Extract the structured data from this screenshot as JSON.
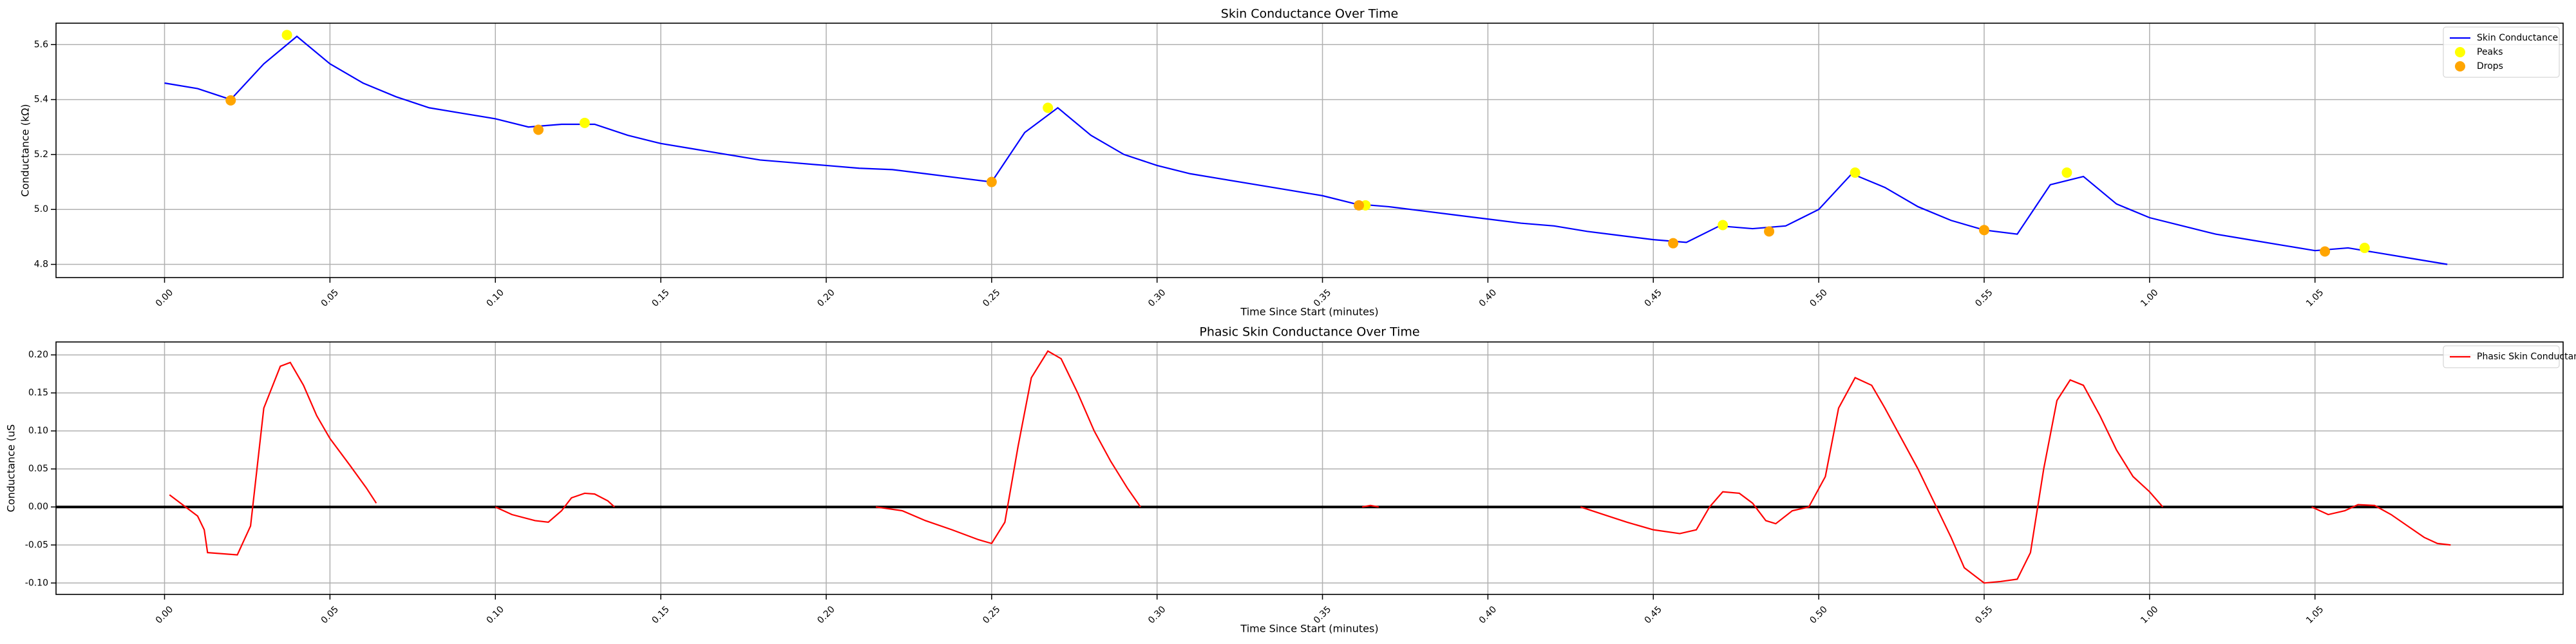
{
  "chart_data": [
    {
      "type": "line",
      "title": "Skin Conductance Over Time",
      "xlabel": "Time Since Start (minutes)",
      "ylabel": "Conductance (kΩ)",
      "xlim": [
        -3.28,
        72.5
      ],
      "ylim": [
        4.752,
        5.678
      ],
      "grid": true,
      "legend": "upper right",
      "xticks": [
        {
          "value": 0,
          "label": "0.00"
        },
        {
          "value": 5,
          "label": "0.05"
        },
        {
          "value": 10,
          "label": "0.10"
        },
        {
          "value": 15,
          "label": "0.15"
        },
        {
          "value": 20,
          "label": "0.20"
        },
        {
          "value": 25,
          "label": "0.25"
        },
        {
          "value": 30,
          "label": "0.30"
        },
        {
          "value": 35,
          "label": "0.35"
        },
        {
          "value": 40,
          "label": "0.40"
        },
        {
          "value": 45,
          "label": "0.45"
        },
        {
          "value": 50,
          "label": "0.50"
        },
        {
          "value": 55,
          "label": "0.55"
        },
        {
          "value": 60,
          "label": "1.00"
        },
        {
          "value": 65,
          "label": "1.05"
        }
      ],
      "yticks": [
        4.8,
        {
          "value": 5,
          "label": "5.0"
        },
        5.2,
        5.4,
        5.6
      ],
      "series": [
        {
          "name": "Skin Conductance",
          "color": "blue",
          "type": "line",
          "x": [
            0,
            1,
            2,
            3,
            4,
            5,
            6,
            7,
            8,
            9,
            10,
            11,
            12,
            13,
            14,
            15,
            16,
            17,
            18,
            19,
            20,
            21,
            22,
            23,
            24,
            25,
            26,
            27,
            28,
            29,
            30,
            31,
            32,
            33,
            34,
            35,
            36,
            37,
            38,
            39,
            40,
            41,
            42,
            43,
            44,
            45,
            46,
            47,
            48,
            49,
            50,
            51,
            52,
            53,
            54,
            55,
            56,
            57,
            58,
            59,
            60,
            61,
            62,
            63,
            64,
            65,
            66,
            67,
            68,
            69
          ],
          "values": [
            5.46,
            5.44,
            5.4,
            5.53,
            5.63,
            5.53,
            5.46,
            5.41,
            5.37,
            5.35,
            5.33,
            5.3,
            5.31,
            5.31,
            5.27,
            5.24,
            5.22,
            5.2,
            5.18,
            5.17,
            5.16,
            5.15,
            5.145,
            5.13,
            5.115,
            5.1,
            5.28,
            5.37,
            5.27,
            5.2,
            5.16,
            5.13,
            5.11,
            5.09,
            5.07,
            5.05,
            5.02,
            5.01,
            4.995,
            4.98,
            4.965,
            4.95,
            4.94,
            4.92,
            4.905,
            4.89,
            4.88,
            4.94,
            4.93,
            4.94,
            5.0,
            5.13,
            5.08,
            5.01,
            4.96,
            4.925,
            4.91,
            5.09,
            5.12,
            5.02,
            4.97,
            4.94,
            4.91,
            4.89,
            4.87,
            4.85,
            4.86,
            4.84,
            4.82,
            4.8
          ]
        },
        {
          "name": "Peaks",
          "color": "yellow",
          "type": "scatter",
          "x": [
            3.7,
            12.7,
            26.7,
            36.3,
            47.1,
            51.1,
            57.5,
            66.5
          ],
          "values": [
            5.635,
            5.315,
            5.37,
            5.015,
            4.943,
            5.134,
            5.134,
            4.86
          ]
        },
        {
          "name": "Drops",
          "color": "orange",
          "type": "scatter",
          "x": [
            2.0,
            11.3,
            25.0,
            36.1,
            45.6,
            48.5,
            55.0,
            65.3
          ],
          "values": [
            5.397,
            5.29,
            5.1,
            5.015,
            4.877,
            4.92,
            4.925,
            4.847
          ]
        }
      ]
    },
    {
      "type": "line",
      "title": "Phasic Skin Conductance Over Time",
      "xlabel": "Time Since Start (minutes)",
      "ylabel": "Conductance (uS",
      "xlim": [
        -3.28,
        72.5
      ],
      "ylim": [
        -0.115,
        0.217
      ],
      "grid": true,
      "legend": "upper right",
      "reference_line": {
        "value": 0,
        "color": "black"
      },
      "xticks": [
        {
          "value": 0,
          "label": "0.00"
        },
        {
          "value": 5,
          "label": "0.05"
        },
        {
          "value": 10,
          "label": "0.10"
        },
        {
          "value": 15,
          "label": "0.15"
        },
        {
          "value": 20,
          "label": "0.20"
        },
        {
          "value": 25,
          "label": "0.25"
        },
        {
          "value": 30,
          "label": "0.30"
        },
        {
          "value": 35,
          "label": "0.35"
        },
        {
          "value": 40,
          "label": "0.40"
        },
        {
          "value": 45,
          "label": "0.45"
        },
        {
          "value": 50,
          "label": "0.50"
        },
        {
          "value": 55,
          "label": "0.55"
        },
        {
          "value": 60,
          "label": "1.00"
        },
        {
          "value": 65,
          "label": "1.05"
        }
      ],
      "yticks": [
        {
          "value": -0.1,
          "label": "-0.10"
        },
        -0.05,
        {
          "value": 0,
          "label": "0.00"
        },
        0.05,
        {
          "value": 0.1,
          "label": "0.10"
        },
        0.15,
        {
          "value": 0.2,
          "label": "0.20"
        }
      ],
      "series": [
        {
          "name": "Phasic Skin Conductance",
          "color": "red",
          "type": "line",
          "x": [
            0.15,
            1.0,
            1.2,
            1.3,
            2.2,
            2.6,
            3.0,
            3.5,
            3.8,
            4.2,
            4.6,
            5.0,
            5.6,
            6.1,
            6.4,
            8,
            10.0,
            10.5,
            11.2,
            11.6,
            12.0,
            12.3,
            12.7,
            13.0,
            13.4,
            13.6,
            17,
            21.5,
            22.3,
            23.0,
            23.8,
            24.6,
            25.0,
            25.4,
            25.8,
            26.2,
            26.7,
            27.1,
            27.6,
            28.1,
            28.6,
            29.1,
            29.5,
            33,
            36.2,
            36.45,
            36.7,
            40,
            42.8,
            43.5,
            44.2,
            45.0,
            45.8,
            46.3,
            46.7,
            47.1,
            47.6,
            48.0,
            48.4,
            48.7,
            49.2,
            49.7,
            50.2,
            50.6,
            51.1,
            51.6,
            52.0,
            52.5,
            53.0,
            53.5,
            54.0,
            54.4,
            55.0,
            55.5,
            56.0,
            56.4,
            56.8,
            57.2,
            57.6,
            58.0,
            58.5,
            59.0,
            59.5,
            60.0,
            60.4,
            63,
            64.9,
            65.4,
            65.9,
            66.3,
            66.8,
            67.3,
            67.8,
            68.3,
            68.7,
            69.1
          ],
          "values": [
            0.016,
            -0.012,
            -0.03,
            -0.06,
            -0.063,
            -0.025,
            0.13,
            0.185,
            0.19,
            0.16,
            0.12,
            0.09,
            0.055,
            0.025,
            0.005,
            null,
            0.0,
            -0.01,
            -0.018,
            -0.02,
            -0.005,
            0.012,
            0.018,
            0.017,
            0.008,
            0.0,
            null,
            0.0,
            -0.005,
            -0.018,
            -0.03,
            -0.043,
            -0.048,
            -0.02,
            0.08,
            0.17,
            0.205,
            0.195,
            0.15,
            0.1,
            0.06,
            0.025,
            0.0,
            null,
            0.0,
            0.002,
            0.0,
            null,
            0.0,
            -0.01,
            -0.02,
            -0.03,
            -0.035,
            -0.03,
            0.0,
            0.02,
            0.018,
            0.005,
            -0.018,
            -0.022,
            -0.005,
            0.0,
            0.04,
            0.13,
            0.17,
            0.16,
            0.13,
            0.09,
            0.05,
            0.005,
            -0.04,
            -0.08,
            -0.1,
            -0.098,
            -0.095,
            -0.06,
            0.05,
            0.14,
            0.167,
            0.16,
            0.12,
            0.075,
            0.04,
            0.02,
            0.0,
            null,
            0.0,
            -0.01,
            -0.005,
            0.003,
            0.002,
            -0.01,
            -0.025,
            -0.04,
            -0.048,
            -0.05
          ]
        }
      ]
    }
  ]
}
